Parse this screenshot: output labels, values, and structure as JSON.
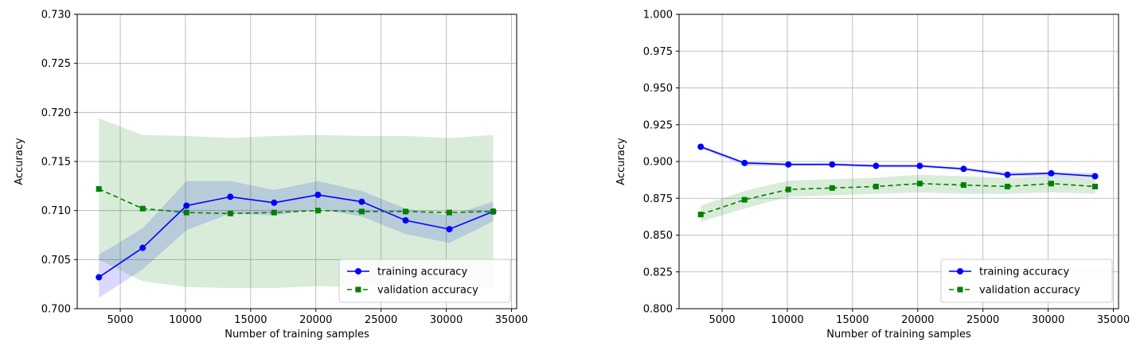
{
  "colors": {
    "training": "#0000ff",
    "validation": "#008000",
    "training_band": "#0000ff",
    "validation_band": "#008000",
    "grid": "#b0b0b0",
    "axes": "#000000"
  },
  "chart_data": [
    {
      "type": "line",
      "title": "",
      "xlabel": "Number of training samples",
      "ylabel": "Accuracy",
      "xlim": [
        1700,
        35400
      ],
      "ylim": [
        0.7,
        0.73
      ],
      "xticks": [
        5000,
        10000,
        15000,
        20000,
        25000,
        30000,
        35000
      ],
      "yticks": [
        0.7,
        0.705,
        0.71,
        0.715,
        0.72,
        0.725,
        0.73
      ],
      "ytick_decimals": 3,
      "grid": true,
      "legend_position": "lower-right",
      "x": [
        3360,
        6720,
        10080,
        13440,
        16800,
        20160,
        23520,
        26880,
        30240,
        33600
      ],
      "series": [
        {
          "name": "training accuracy",
          "style": "solid-circle",
          "color": "#0000ff",
          "values": [
            0.7032,
            0.7062,
            0.7105,
            0.7114,
            0.7108,
            0.7116,
            0.7109,
            0.709,
            0.7081,
            0.7099
          ],
          "band_lower": [
            0.7011,
            0.704,
            0.708,
            0.7097,
            0.7095,
            0.7102,
            0.7094,
            0.7076,
            0.7067,
            0.7089
          ],
          "band_upper": [
            0.7055,
            0.7082,
            0.713,
            0.713,
            0.7121,
            0.713,
            0.712,
            0.7102,
            0.7095,
            0.7109
          ]
        },
        {
          "name": "validation accuracy",
          "style": "dashed-square",
          "color": "#008000",
          "values": [
            0.7122,
            0.7102,
            0.7098,
            0.7097,
            0.7098,
            0.71,
            0.7099,
            0.7099,
            0.7098,
            0.7099
          ],
          "band_lower": [
            0.705,
            0.7028,
            0.7022,
            0.7021,
            0.7021,
            0.7023,
            0.7022,
            0.7023,
            0.702,
            0.7022
          ],
          "band_upper": [
            0.7194,
            0.7177,
            0.7176,
            0.7174,
            0.7176,
            0.7177,
            0.7176,
            0.7176,
            0.7174,
            0.7177
          ]
        }
      ]
    },
    {
      "type": "line",
      "title": "",
      "xlabel": "Number of training samples",
      "ylabel": "Accuracy",
      "xlim": [
        1700,
        35400
      ],
      "ylim": [
        0.8,
        1.0
      ],
      "xticks": [
        5000,
        10000,
        15000,
        20000,
        25000,
        30000,
        35000
      ],
      "yticks": [
        0.8,
        0.825,
        0.85,
        0.875,
        0.9,
        0.925,
        0.95,
        0.975,
        1.0
      ],
      "ytick_decimals": 3,
      "grid": true,
      "legend_position": "lower-right",
      "x": [
        3360,
        6720,
        10080,
        13440,
        16800,
        20160,
        23520,
        26880,
        30240,
        33600
      ],
      "series": [
        {
          "name": "training accuracy",
          "style": "solid-circle",
          "color": "#0000ff",
          "values": [
            0.91,
            0.899,
            0.898,
            0.898,
            0.897,
            0.897,
            0.895,
            0.891,
            0.892,
            0.89
          ],
          "band_lower": [
            0.909,
            0.897,
            0.897,
            0.897,
            0.896,
            0.896,
            0.894,
            0.89,
            0.89,
            0.889
          ],
          "band_upper": [
            0.911,
            0.9,
            0.899,
            0.899,
            0.898,
            0.898,
            0.896,
            0.893,
            0.893,
            0.892
          ]
        },
        {
          "name": "validation accuracy",
          "style": "dashed-square",
          "color": "#008000",
          "values": [
            0.864,
            0.874,
            0.881,
            0.882,
            0.883,
            0.885,
            0.884,
            0.883,
            0.885,
            0.883
          ],
          "band_lower": [
            0.859,
            0.868,
            0.876,
            0.877,
            0.878,
            0.879,
            0.878,
            0.878,
            0.879,
            0.878
          ],
          "band_upper": [
            0.87,
            0.88,
            0.887,
            0.888,
            0.889,
            0.891,
            0.89,
            0.889,
            0.89,
            0.889
          ]
        }
      ]
    }
  ]
}
